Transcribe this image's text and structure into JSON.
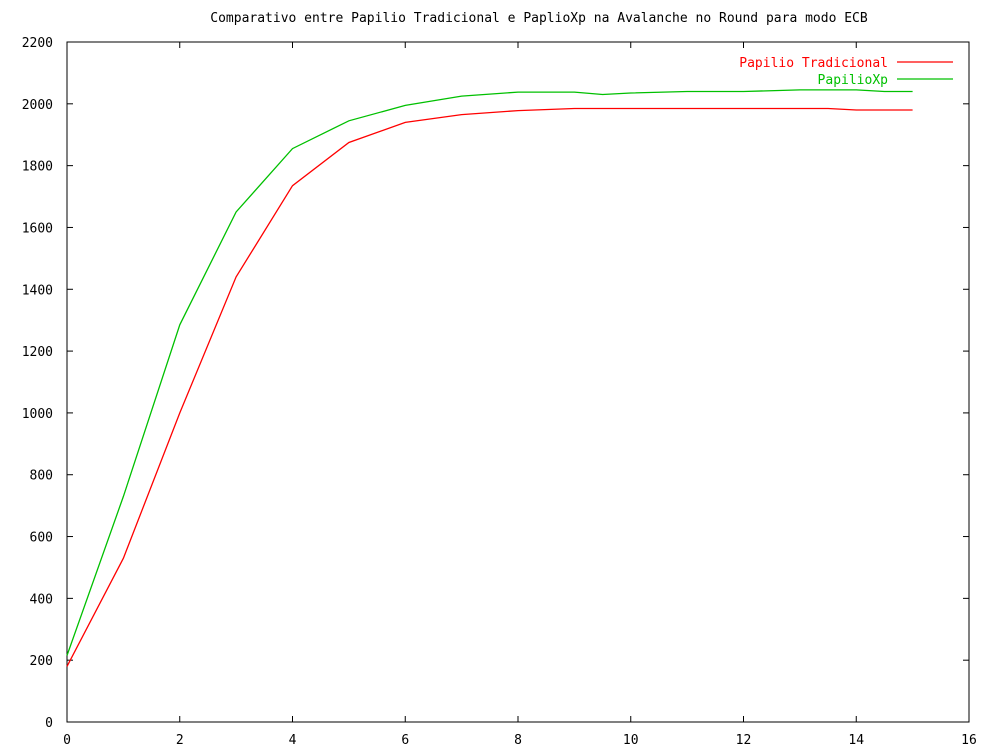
{
  "chart_data": {
    "type": "line",
    "title": "Comparativo entre Papilio Tradicional e PaplioXp na Avalanche no Round para modo ECB",
    "xlabel": "",
    "ylabel": "",
    "xlim": [
      0,
      16
    ],
    "ylim": [
      0,
      2200
    ],
    "x_ticks": [
      "0",
      "2",
      "4",
      "6",
      "8",
      "10",
      "12",
      "14",
      "16"
    ],
    "y_ticks": [
      "0",
      "200",
      "400",
      "600",
      "800",
      "1000",
      "1200",
      "1400",
      "1600",
      "1800",
      "2000",
      "2200"
    ],
    "legend_position": "top-right",
    "grid": false,
    "series": [
      {
        "name": "Papilio Tradicional",
        "color": "#ff0000",
        "x": [
          0,
          1,
          2,
          3,
          4,
          5,
          6,
          7,
          8,
          9,
          10,
          11,
          12,
          13,
          13.5,
          14,
          15
        ],
        "y": [
          180,
          530,
          1000,
          1440,
          1735,
          1875,
          1940,
          1965,
          1978,
          1985,
          1985,
          1985,
          1985,
          1985,
          1985,
          1980,
          1980
        ]
      },
      {
        "name": "PapilioXp",
        "color": "#00c000",
        "x": [
          0,
          1,
          2,
          3,
          4,
          5,
          6,
          7,
          8,
          9,
          9.5,
          10,
          11,
          12,
          13,
          14,
          14.5,
          15
        ],
        "y": [
          215,
          730,
          1285,
          1650,
          1855,
          1945,
          1995,
          2025,
          2038,
          2038,
          2030,
          2035,
          2040,
          2040,
          2045,
          2045,
          2040,
          2040
        ]
      }
    ]
  }
}
